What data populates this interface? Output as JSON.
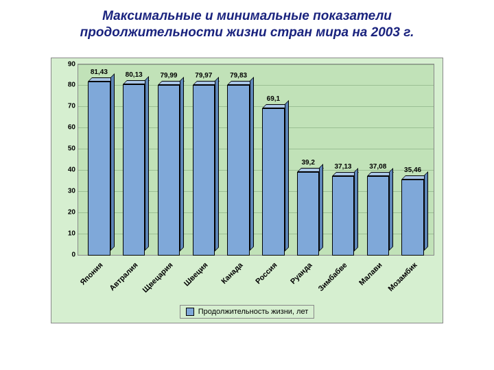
{
  "title_line1": "Максимальные и минимальные показатели",
  "title_line2": "продолжительности жизни стран мира на 2003 г.",
  "title_color": "#1a237e",
  "title_fontsize": 19,
  "chart": {
    "type": "bar",
    "background_color": "#d6efd0",
    "plot_background_color": "#c1e2b8",
    "grid_color": "#9bbf94",
    "axis_color": "#888888",
    "bar_front_color": "#7fa8d9",
    "bar_top_color": "#a9c5e6",
    "bar_side_color": "#5e86b8",
    "ylim_min": 0,
    "ylim_max": 90,
    "ytick_step": 10,
    "yticks": [
      "0",
      "10",
      "20",
      "30",
      "40",
      "50",
      "60",
      "70",
      "80",
      "90"
    ],
    "categories": [
      "Япония",
      "Автралия",
      "Щвецария",
      "Швеция",
      "Канада",
      "Россия",
      "Руанда",
      "Зимбабве",
      "Малави",
      "Мозамбик"
    ],
    "values": [
      81.43,
      80.13,
      79.99,
      79.97,
      79.83,
      69.1,
      39.2,
      37.13,
      37.08,
      35.46
    ],
    "value_labels": [
      "81,43",
      "80,13",
      "79,99",
      "79,97",
      "79,83",
      "69,1",
      "39,2",
      "37,13",
      "37,08",
      "35,46"
    ],
    "label_fontsize": 10,
    "xlabel_fontsize": 11,
    "legend_label": "Продолжительность жизни, лет"
  }
}
